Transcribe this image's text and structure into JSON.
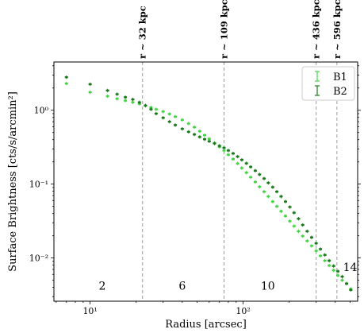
{
  "chart_data": {
    "type": "scatter",
    "xlabel": "Radius [arcsec]",
    "ylabel": "Surface Brightness [cts/s/arcmin²]",
    "xscale": "log",
    "yscale": "log",
    "xlim": [
      5.8,
      560
    ],
    "ylim": [
      0.0026,
      4.5
    ],
    "xticks": [
      {
        "value": 10,
        "label": "10¹"
      },
      {
        "value": 100,
        "label": "10²"
      }
    ],
    "yticks": [
      {
        "value": 0.01,
        "label": "10⁻²"
      },
      {
        "value": 0.1,
        "label": "10⁻¹"
      },
      {
        "value": 1,
        "label": "10⁰"
      }
    ],
    "legend": {
      "placement": "top-right"
    },
    "vertical_lines": [
      {
        "x": 22,
        "label": "r ~ 32 kpc"
      },
      {
        "x": 75,
        "label": "r ~ 109 kpc"
      },
      {
        "x": 300,
        "label": "r ~ 436 kpc"
      },
      {
        "x": 410,
        "label": "r ~ 596 kpc"
      }
    ],
    "region_labels": [
      {
        "x": 12,
        "y": 0.0042,
        "text": "2"
      },
      {
        "x": 40,
        "y": 0.0042,
        "text": "6"
      },
      {
        "x": 145,
        "y": 0.0042,
        "text": "10"
      },
      {
        "x": 500,
        "y": 0.0075,
        "text": "14"
      }
    ],
    "series": [
      {
        "name": "B1",
        "color": "#44d444",
        "x": [
          7,
          10,
          13,
          15,
          17,
          19,
          21,
          23,
          25,
          27,
          30,
          33,
          36,
          40,
          44,
          48,
          52,
          56,
          60,
          65,
          70,
          75,
          80,
          86,
          92,
          98,
          105,
          112,
          120,
          128,
          137,
          146,
          156,
          166,
          177,
          189,
          202,
          215,
          230,
          245,
          262,
          280,
          300,
          320,
          342,
          365,
          390,
          416,
          444,
          474,
          505
        ],
        "y": [
          2.3,
          1.75,
          1.55,
          1.43,
          1.35,
          1.28,
          1.22,
          1.15,
          1.09,
          1.03,
          0.96,
          0.89,
          0.82,
          0.74,
          0.66,
          0.59,
          0.52,
          0.46,
          0.41,
          0.36,
          0.32,
          0.285,
          0.25,
          0.218,
          0.19,
          0.165,
          0.143,
          0.124,
          0.107,
          0.092,
          0.079,
          0.068,
          0.058,
          0.05,
          0.043,
          0.037,
          0.0315,
          0.027,
          0.023,
          0.0198,
          0.017,
          0.0146,
          0.0125,
          0.0107,
          0.0092,
          0.0079,
          0.0068,
          0.0058,
          0.005,
          0.0045,
          0.0038
        ]
      },
      {
        "name": "B2",
        "color": "#1b7a1b",
        "x": [
          7,
          10,
          13,
          15,
          17,
          19,
          21,
          23,
          25,
          27,
          30,
          33,
          36,
          40,
          44,
          48,
          52,
          56,
          60,
          65,
          70,
          75,
          80,
          86,
          92,
          98,
          105,
          112,
          120,
          128,
          137,
          146,
          156,
          166,
          177,
          189,
          202,
          215,
          230,
          245,
          262,
          280,
          300,
          320,
          342,
          365,
          390,
          416,
          444,
          474,
          505
        ],
        "y": [
          2.8,
          2.25,
          1.85,
          1.65,
          1.5,
          1.4,
          1.28,
          1.16,
          1.03,
          0.9,
          0.79,
          0.7,
          0.63,
          0.56,
          0.51,
          0.47,
          0.435,
          0.405,
          0.38,
          0.355,
          0.33,
          0.31,
          0.285,
          0.26,
          0.236,
          0.213,
          0.191,
          0.171,
          0.152,
          0.135,
          0.119,
          0.104,
          0.091,
          0.079,
          0.068,
          0.058,
          0.049,
          0.041,
          0.034,
          0.028,
          0.023,
          0.019,
          0.0158,
          0.0132,
          0.011,
          0.0092,
          0.0078,
          0.0066,
          0.0056,
          0.0045,
          0.0037
        ]
      }
    ]
  }
}
